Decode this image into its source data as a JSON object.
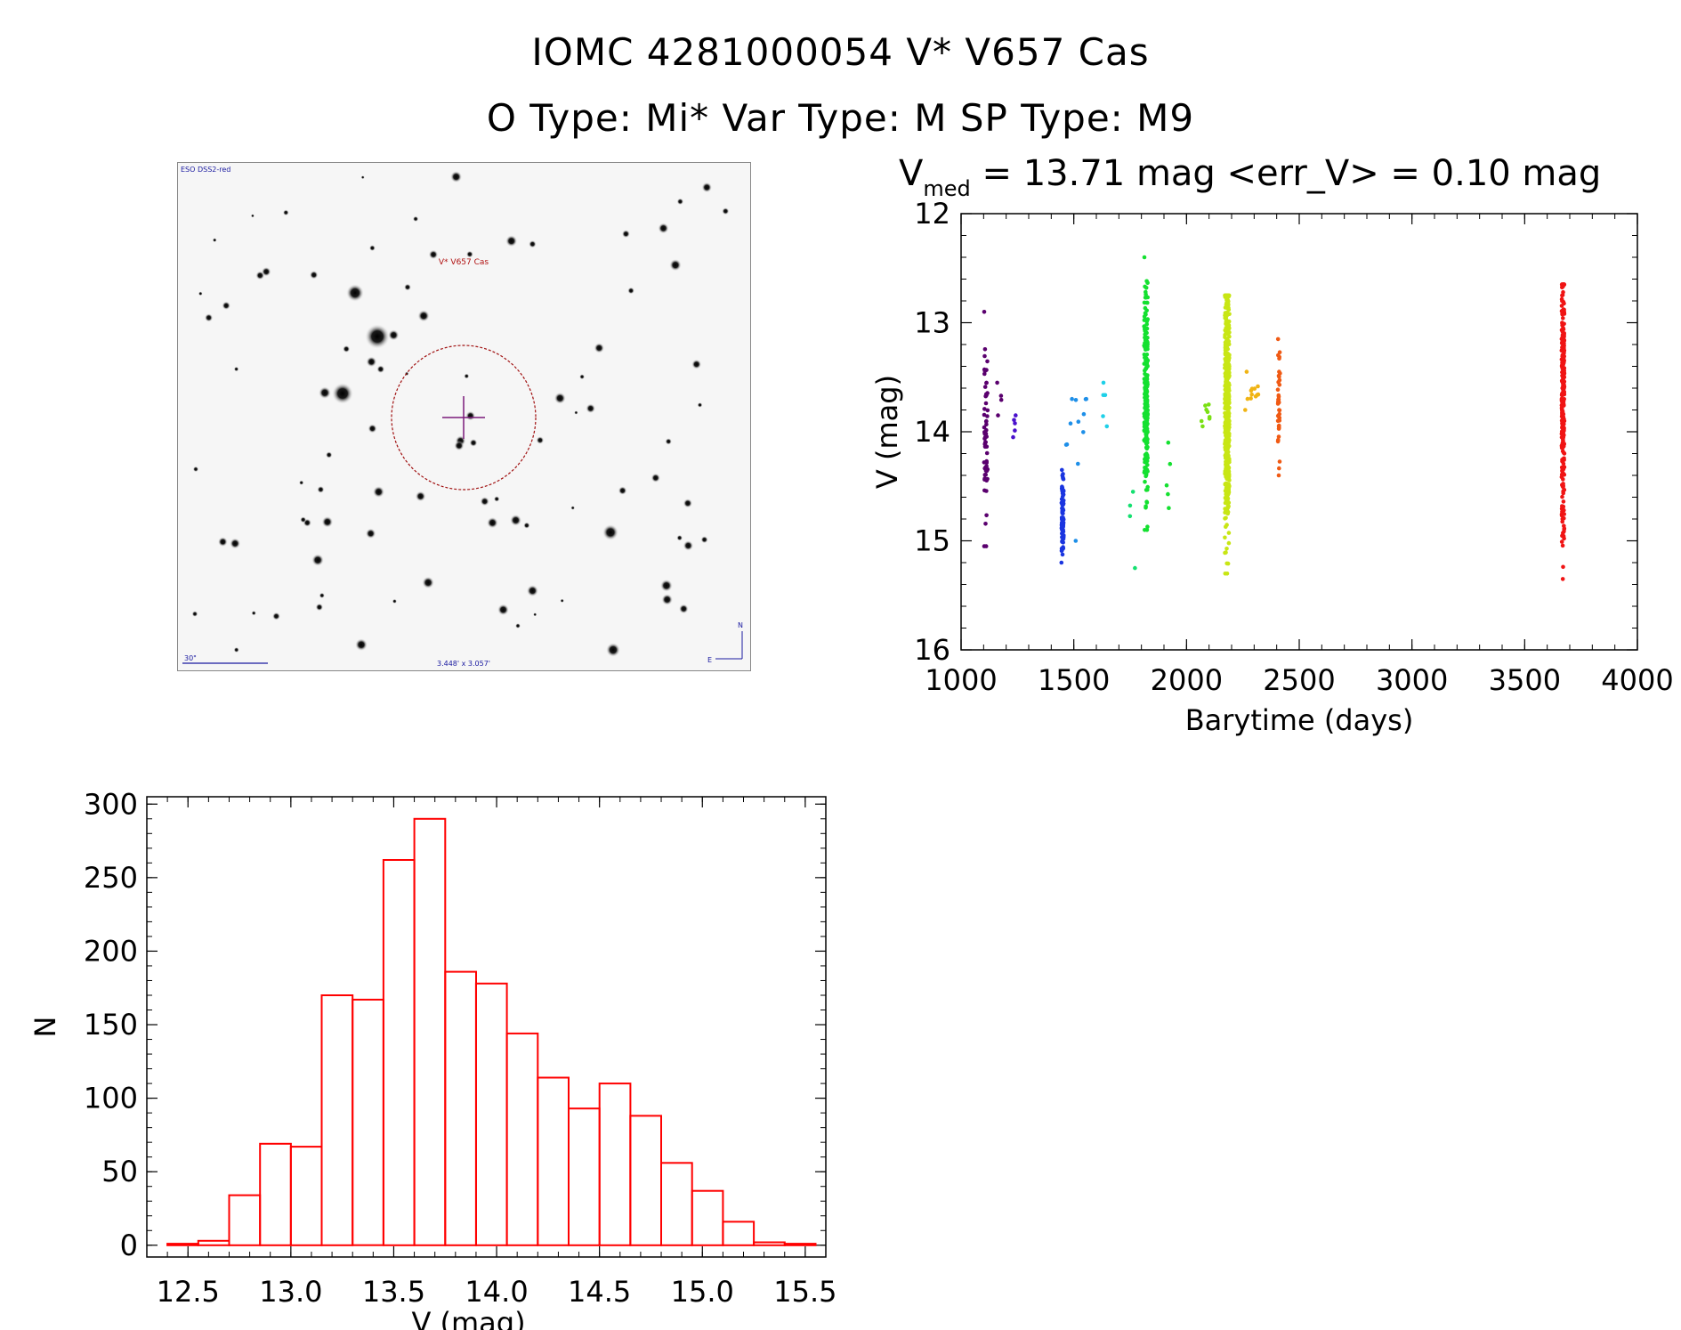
{
  "header": {
    "line1": "IOMC 4281000054    V* V657 Cas",
    "line2": "O Type: Mi*  Var Type: M  SP Type: M9"
  },
  "finder": {
    "survey_label": "ESO DSS2-red",
    "target_label": "V* V657 Cas",
    "scale_label": "30\"",
    "size_label": "3.448' x 3.057'",
    "north_label": "N",
    "east_label": "E"
  },
  "lightcurve": {
    "vmed_prefix": "V",
    "vmed_sub": "med",
    "vmed_text": " = 13.71 mag <err_V> = 0.10 mag"
  },
  "chart_data": [
    {
      "type": "scatter",
      "title": "V_med = 13.71 mag <err_V> = 0.10 mag",
      "xlabel": "Barytime (days)",
      "ylabel": "V (mag)",
      "xlim": [
        1000,
        4000
      ],
      "ylim": [
        16,
        12
      ],
      "x_ticks": [
        1000,
        1500,
        2000,
        2500,
        3000,
        3500,
        4000
      ],
      "y_ticks": [
        12,
        13,
        14,
        15,
        16
      ],
      "groups": [
        {
          "x_center": 1110,
          "x_spread": 8,
          "y_min": 12.9,
          "y_max": 15.05,
          "y_center": 14.0,
          "n": 60,
          "color": "#5a006e"
        },
        {
          "x_center": 1170,
          "x_spread": 12,
          "y_min": 13.55,
          "y_max": 13.85,
          "y_center": 13.7,
          "n": 4,
          "color": "#5a006e"
        },
        {
          "x_center": 1240,
          "x_spread": 10,
          "y_min": 13.85,
          "y_max": 14.05,
          "y_center": 13.95,
          "n": 5,
          "color": "#4a10cc"
        },
        {
          "x_center": 1450,
          "x_spread": 5,
          "y_min": 14.35,
          "y_max": 15.2,
          "y_center": 14.75,
          "n": 90,
          "color": "#1a35e0"
        },
        {
          "x_center": 1510,
          "x_spread": 60,
          "y_min": 13.7,
          "y_max": 15.0,
          "y_center": 14.2,
          "n": 12,
          "color": "#1e8fe8"
        },
        {
          "x_center": 1640,
          "x_spread": 15,
          "y_min": 13.55,
          "y_max": 13.95,
          "y_center": 13.75,
          "n": 5,
          "color": "#1ed0e8"
        },
        {
          "x_center": 1760,
          "x_spread": 15,
          "y_min": 14.55,
          "y_max": 15.25,
          "y_center": 14.8,
          "n": 4,
          "color": "#14e070"
        },
        {
          "x_center": 1820,
          "x_spread": 8,
          "y_min": 12.4,
          "y_max": 14.9,
          "y_center": 13.7,
          "n": 220,
          "color": "#14e030"
        },
        {
          "x_center": 1920,
          "x_spread": 10,
          "y_min": 14.1,
          "y_max": 14.7,
          "y_center": 14.4,
          "n": 5,
          "color": "#14e030"
        },
        {
          "x_center": 2080,
          "x_spread": 25,
          "y_min": 13.75,
          "y_max": 13.95,
          "y_center": 13.85,
          "n": 8,
          "color": "#7ae014"
        },
        {
          "x_center": 2180,
          "x_spread": 10,
          "y_min": 12.75,
          "y_max": 15.3,
          "y_center": 13.75,
          "n": 520,
          "color": "#c8e614"
        },
        {
          "x_center": 2290,
          "x_spread": 30,
          "y_min": 13.45,
          "y_max": 13.8,
          "y_center": 13.6,
          "n": 12,
          "color": "#f0b414"
        },
        {
          "x_center": 2410,
          "x_spread": 5,
          "y_min": 13.15,
          "y_max": 14.4,
          "y_center": 13.8,
          "n": 40,
          "color": "#f05a14"
        },
        {
          "x_center": 3670,
          "x_spread": 6,
          "y_min": 12.65,
          "y_max": 15.35,
          "y_center": 13.7,
          "n": 280,
          "color": "#f01414"
        }
      ]
    },
    {
      "type": "bar",
      "title": "",
      "xlabel": "V (mag)",
      "ylabel": "N",
      "xlim": [
        12.3,
        15.6
      ],
      "ylim": [
        -8,
        305
      ],
      "x_ticks": [
        "12.5",
        "13.0",
        "13.5",
        "14.0",
        "14.5",
        "15.0",
        "15.5"
      ],
      "y_ticks": [
        "0",
        "50",
        "100",
        "150",
        "200",
        "250",
        "300"
      ],
      "bin_width": 0.15,
      "bin_starts": [
        12.4,
        12.55,
        12.7,
        12.85,
        13.0,
        13.15,
        13.3,
        13.45,
        13.6,
        13.75,
        13.9,
        14.05,
        14.2,
        14.35,
        14.5,
        14.65,
        14.8,
        14.95,
        15.1,
        15.25,
        15.4
      ],
      "values": [
        1,
        3,
        34,
        69,
        67,
        170,
        167,
        262,
        290,
        186,
        178,
        144,
        114,
        93,
        110,
        88,
        56,
        37,
        16,
        2,
        1
      ],
      "color": "#ff0000"
    }
  ]
}
